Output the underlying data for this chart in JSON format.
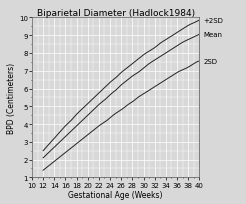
{
  "title": "Biparietal Diameter (Hadlock1984)",
  "xlabel": "Gestational Age (Weeks)",
  "ylabel": "BPD (Centimeters)",
  "xlim": [
    10,
    40
  ],
  "ylim": [
    1,
    10
  ],
  "xticks": [
    10,
    12,
    14,
    16,
    18,
    20,
    22,
    24,
    26,
    28,
    30,
    32,
    34,
    36,
    38,
    40
  ],
  "yticks": [
    1,
    2,
    3,
    4,
    5,
    6,
    7,
    8,
    9,
    10
  ],
  "legend_labels": [
    "+2SD",
    "Mean",
    "2SD"
  ],
  "background_color": "#d8d8d8",
  "grid_color": "#ffffff",
  "line_color": "#222222",
  "title_fontsize": 6.5,
  "label_fontsize": 5.5,
  "tick_fontsize": 5,
  "mean_ga": [
    12,
    13,
    14,
    15,
    16,
    17,
    18,
    19,
    20,
    21,
    22,
    23,
    24,
    25,
    26,
    27,
    28,
    29,
    30,
    31,
    32,
    33,
    34,
    35,
    36,
    37,
    38,
    39,
    40
  ],
  "mean_bpd": [
    2.1,
    2.4,
    2.7,
    3.0,
    3.3,
    3.6,
    3.9,
    4.2,
    4.5,
    4.8,
    5.1,
    5.35,
    5.65,
    5.9,
    6.2,
    6.45,
    6.7,
    6.9,
    7.15,
    7.4,
    7.6,
    7.8,
    8.0,
    8.2,
    8.4,
    8.6,
    8.75,
    8.9,
    9.05
  ],
  "upper_bpd": [
    2.5,
    2.85,
    3.2,
    3.55,
    3.9,
    4.2,
    4.55,
    4.85,
    5.15,
    5.45,
    5.75,
    6.05,
    6.35,
    6.6,
    6.9,
    7.15,
    7.4,
    7.65,
    7.9,
    8.1,
    8.3,
    8.55,
    8.75,
    8.95,
    9.15,
    9.35,
    9.55,
    9.7,
    9.85
  ],
  "lower_bpd": [
    1.4,
    1.65,
    1.9,
    2.15,
    2.4,
    2.65,
    2.9,
    3.15,
    3.4,
    3.65,
    3.9,
    4.1,
    4.35,
    4.6,
    4.8,
    5.05,
    5.25,
    5.5,
    5.7,
    5.9,
    6.1,
    6.3,
    6.5,
    6.7,
    6.9,
    7.05,
    7.2,
    7.4,
    7.55
  ]
}
